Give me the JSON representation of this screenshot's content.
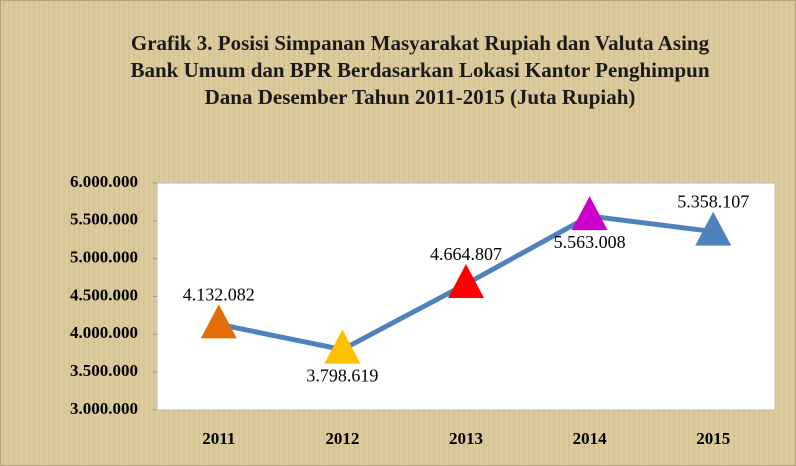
{
  "chart_data": {
    "type": "line",
    "title": "Grafik 3. Posisi Simpanan Masyarakat Rupiah dan Valuta Asing Bank Umum dan BPR Berdasarkan Lokasi Kantor Penghimpun Dana Desember Tahun 2011-2015 (Juta Rupiah)",
    "categories": [
      "2011",
      "2012",
      "2013",
      "2014",
      "2015"
    ],
    "values": [
      4132082,
      3798619,
      4664807,
      5563008,
      5358107
    ],
    "value_labels": [
      "4.132.082",
      "3.798.619",
      "4.664.807",
      "5.563.008",
      "5.358.107"
    ],
    "color": "#4f81bd",
    "marker_colors": [
      "#e36c09",
      "#ffc000",
      "#ff0000",
      "#cc00cc",
      "#4f81bd"
    ],
    "ylim": [
      3000000,
      6000000
    ],
    "yticks": [
      {
        "value": 3000000,
        "label": "3.000.000"
      },
      {
        "value": 3500000,
        "label": "3.500.000"
      },
      {
        "value": 4000000,
        "label": "4.000.000"
      },
      {
        "value": 4500000,
        "label": "4.500.000"
      },
      {
        "value": 5000000,
        "label": "5.000.000"
      },
      {
        "value": 5500000,
        "label": "5.500.000"
      },
      {
        "value": 6000000,
        "label": "6.000.000"
      }
    ]
  }
}
